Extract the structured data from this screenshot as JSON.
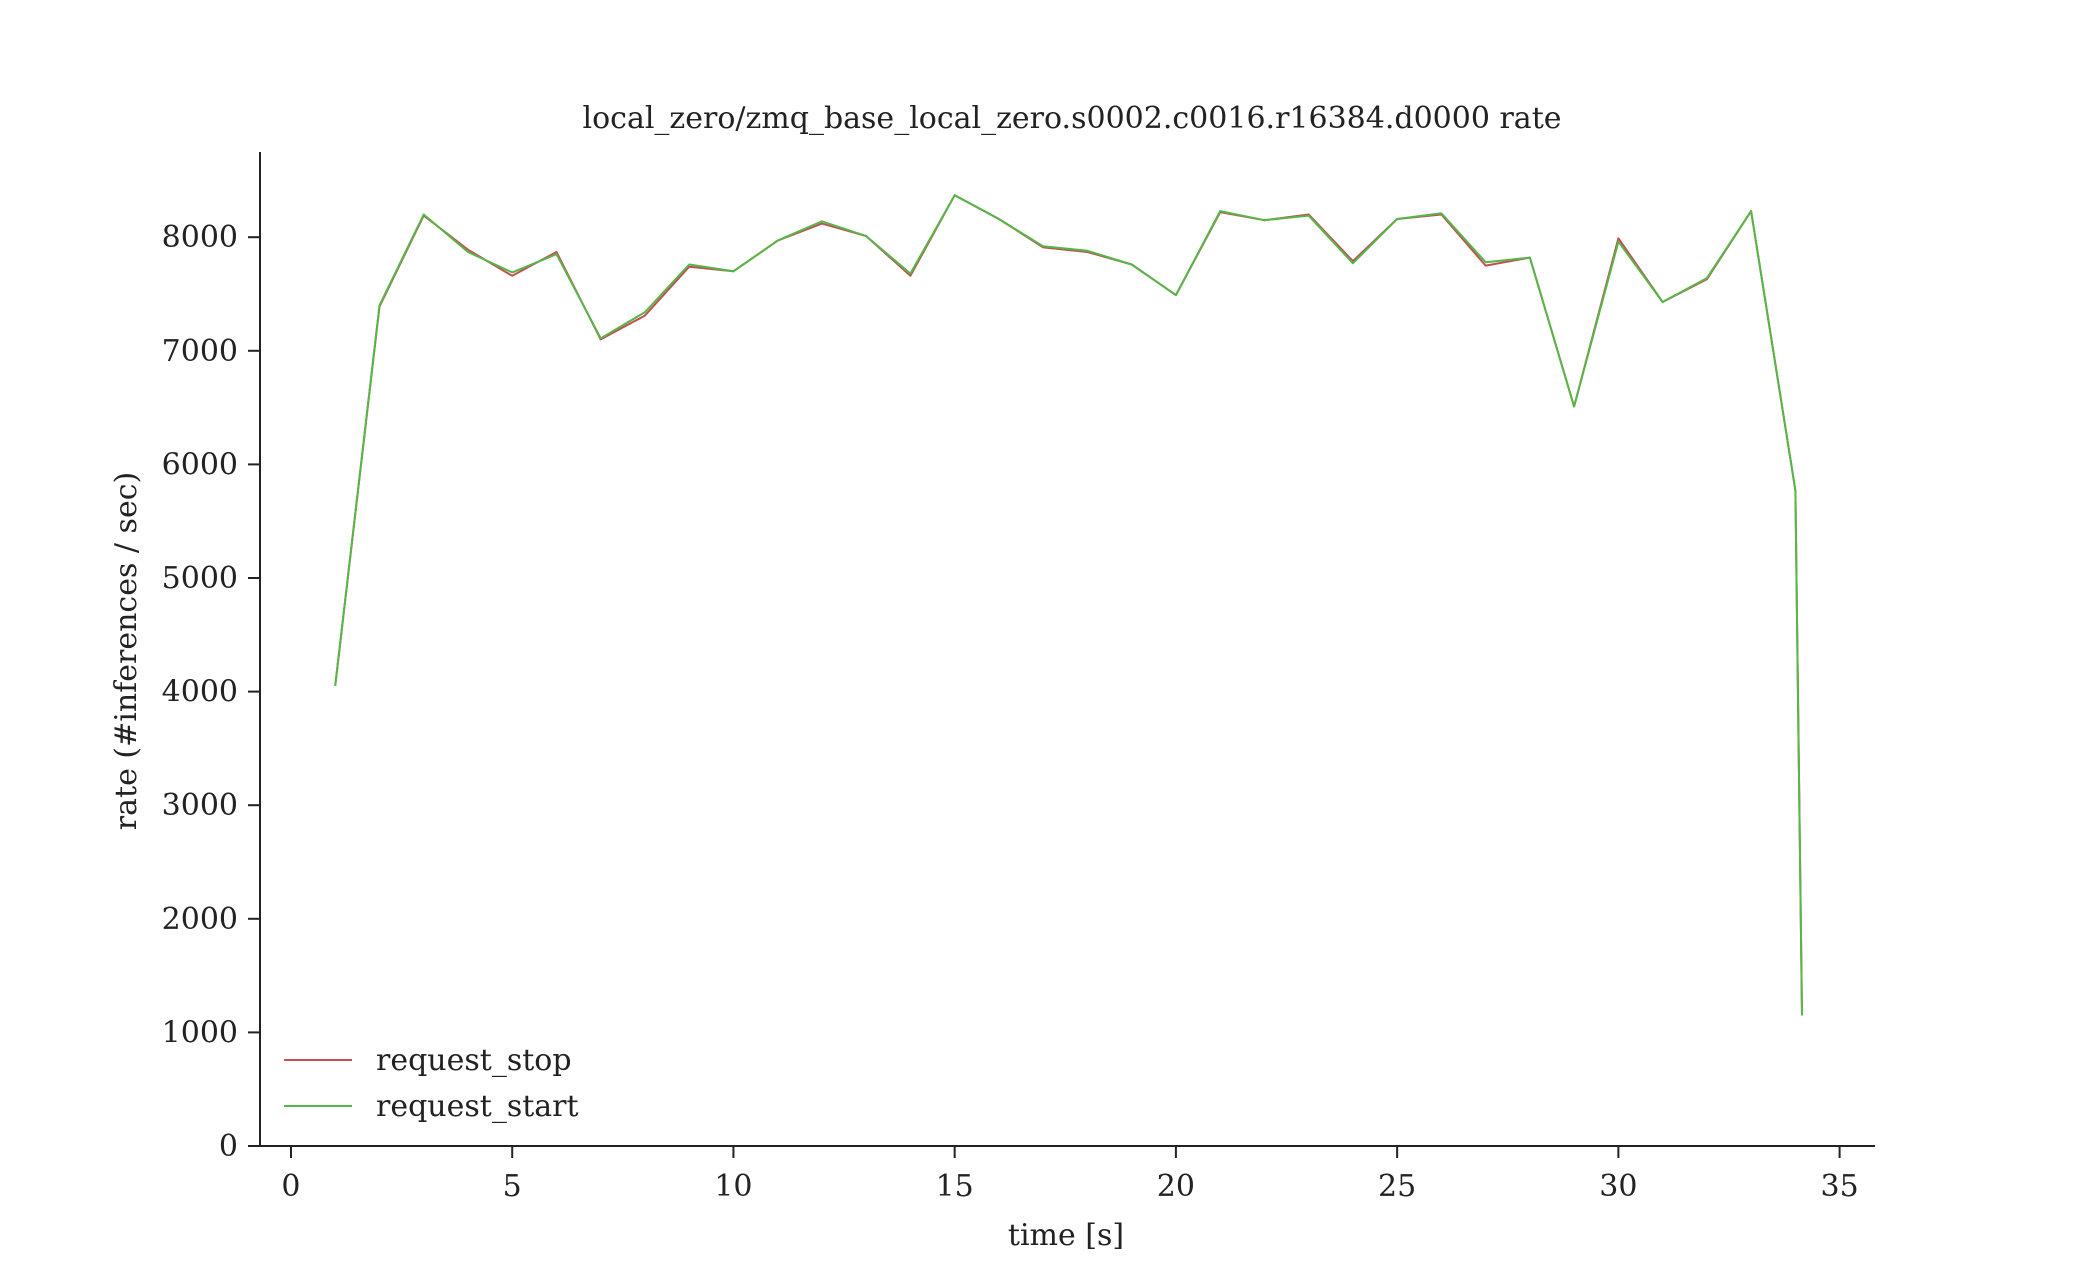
{
  "chart_data": {
    "type": "line",
    "title": "local_zero/zmq_base_local_zero.s0002.c0016.r16384.d0000 rate",
    "xlabel": "time [s]",
    "ylabel": "rate (#inferences / sec)",
    "xlim": [
      -0.7,
      35.8
    ],
    "ylim": [
      0,
      8750
    ],
    "xticks": [
      0,
      5,
      10,
      15,
      20,
      25,
      30,
      35
    ],
    "yticks": [
      0,
      1000,
      2000,
      3000,
      4000,
      5000,
      6000,
      7000,
      8000
    ],
    "grid": false,
    "legend": "lower-left",
    "series": [
      {
        "name": "request_stop",
        "color": "#c44e52",
        "x": [
          1,
          2,
          3,
          4,
          5,
          6,
          7,
          8,
          9,
          10,
          11,
          12,
          13,
          14,
          15,
          16,
          17,
          18,
          19,
          20,
          21,
          22,
          23,
          24,
          25,
          26,
          27,
          28,
          29,
          30,
          31,
          32,
          33,
          34,
          34.15
        ],
        "y": [
          4050,
          7390,
          8190,
          7890,
          7660,
          7870,
          7100,
          7310,
          7740,
          7700,
          7970,
          8120,
          8010,
          7660,
          8370,
          8160,
          7910,
          7870,
          7760,
          7490,
          8220,
          8150,
          8200,
          7790,
          8160,
          8200,
          7750,
          7820,
          6510,
          7990,
          7430,
          7630,
          8230,
          5770,
          1150
        ]
      },
      {
        "name": "request_start",
        "color": "#55b748",
        "x": [
          1,
          2,
          3,
          4,
          5,
          6,
          7,
          8,
          9,
          10,
          11,
          12,
          13,
          14,
          15,
          16,
          17,
          18,
          19,
          20,
          21,
          22,
          23,
          24,
          25,
          26,
          27,
          28,
          29,
          30,
          31,
          32,
          33,
          34,
          34.15
        ],
        "y": [
          4050,
          7400,
          8200,
          7870,
          7690,
          7850,
          7110,
          7340,
          7760,
          7700,
          7970,
          8140,
          8010,
          7680,
          8370,
          8160,
          7920,
          7880,
          7760,
          7490,
          8230,
          8150,
          8190,
          7770,
          8160,
          8210,
          7780,
          7820,
          6510,
          7960,
          7430,
          7640,
          8230,
          5770,
          1150
        ]
      }
    ]
  }
}
